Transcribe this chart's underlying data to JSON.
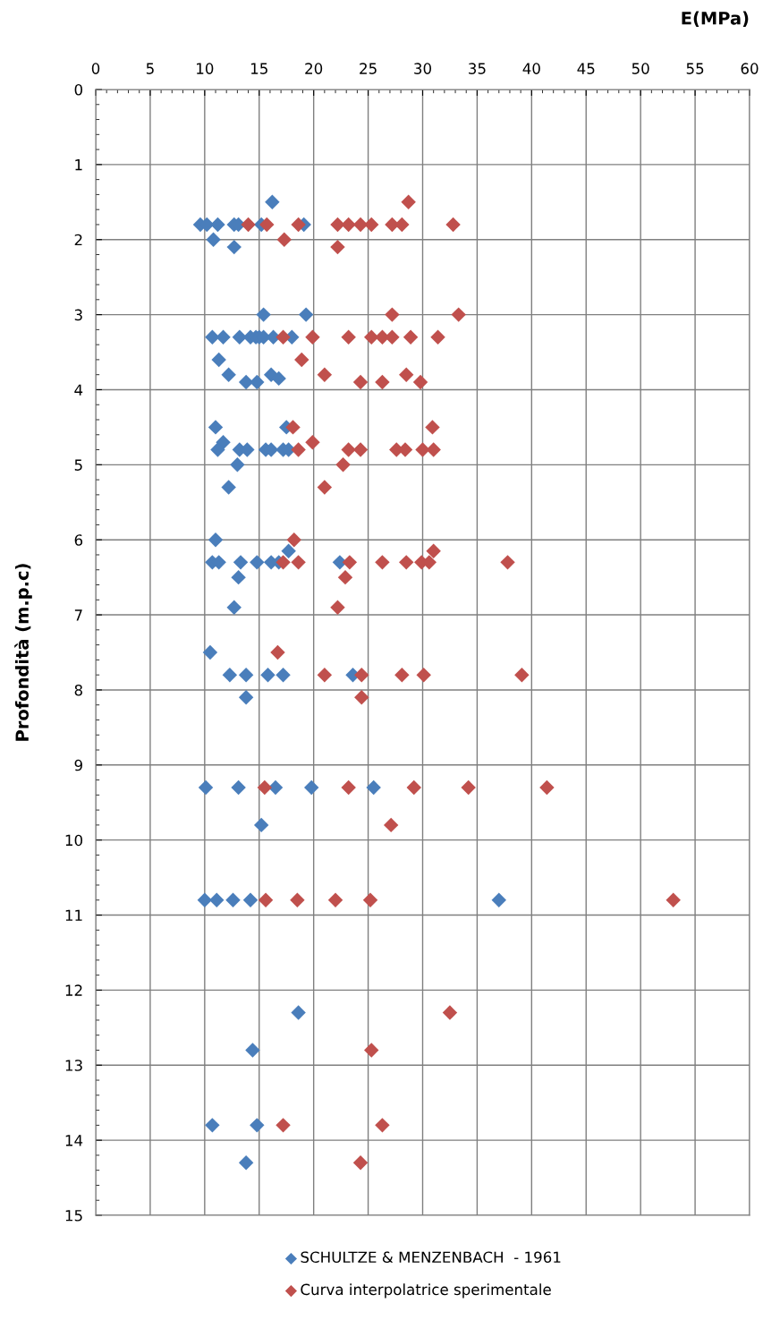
{
  "chart_data": {
    "type": "scatter",
    "xlabel": "E(MPa)",
    "ylabel": "Profondità (m.p.c)",
    "xlim": [
      0,
      60
    ],
    "xticks": [
      0,
      5,
      10,
      15,
      20,
      25,
      30,
      35,
      40,
      45,
      50,
      55,
      60
    ],
    "ylim": [
      15,
      0
    ],
    "yticks": [
      0,
      1,
      2,
      3,
      4,
      5,
      6,
      7,
      8,
      9,
      10,
      11,
      12,
      13,
      14,
      15
    ],
    "grid": true,
    "legend": "bottom",
    "marker": "diamond",
    "series": [
      {
        "name": "SCHULTZE & MENZENBACH  - 1961",
        "color": "#4a7ebb",
        "x": [
          16.2,
          9.6,
          10.2,
          11.2,
          12.7,
          13.1,
          15.2,
          19.1,
          10.8,
          12.7,
          15.4,
          19.3,
          10.7,
          11.7,
          13.2,
          14.2,
          14.7,
          15.0,
          15.4,
          16.3,
          18.0,
          11.3,
          12.2,
          16.1,
          16.8,
          13.8,
          14.8,
          11.0,
          17.5,
          11.7,
          11.2,
          13.2,
          13.9,
          15.6,
          16.1,
          17.2,
          17.7,
          13.0,
          12.2,
          11.0,
          17.7,
          10.7,
          11.3,
          13.3,
          14.8,
          16.1,
          16.8,
          22.4,
          13.1,
          12.7,
          10.5,
          12.3,
          13.8,
          15.8,
          17.2,
          23.6,
          13.8,
          10.1,
          13.1,
          16.5,
          19.8,
          25.5,
          15.2,
          10.0,
          11.1,
          12.6,
          14.2,
          37.0,
          18.6,
          14.4,
          10.7,
          14.8,
          13.8
        ],
        "values": [
          1.5,
          1.8,
          1.8,
          1.8,
          1.8,
          1.8,
          1.8,
          1.8,
          2.0,
          2.1,
          3.0,
          3.0,
          3.3,
          3.3,
          3.3,
          3.3,
          3.3,
          3.3,
          3.3,
          3.3,
          3.3,
          3.6,
          3.8,
          3.8,
          3.85,
          3.9,
          3.9,
          4.5,
          4.5,
          4.7,
          4.8,
          4.8,
          4.8,
          4.8,
          4.8,
          4.8,
          4.8,
          5.0,
          5.3,
          6.0,
          6.15,
          6.3,
          6.3,
          6.3,
          6.3,
          6.3,
          6.3,
          6.3,
          6.5,
          6.9,
          7.5,
          7.8,
          7.8,
          7.8,
          7.8,
          7.8,
          8.1,
          9.3,
          9.3,
          9.3,
          9.3,
          9.3,
          9.8,
          10.8,
          10.8,
          10.8,
          10.8,
          10.8,
          12.3,
          12.8,
          13.8,
          13.8,
          14.3
        ]
      },
      {
        "name": "Curva interpolatrice sperimentale",
        "color": "#c0504d",
        "x": [
          28.7,
          14.0,
          15.7,
          18.6,
          22.2,
          23.2,
          24.3,
          25.3,
          27.2,
          28.1,
          32.8,
          17.3,
          22.2,
          27.2,
          33.3,
          17.2,
          19.9,
          23.2,
          25.3,
          26.3,
          27.2,
          28.9,
          31.4,
          18.9,
          21.0,
          28.5,
          24.3,
          26.3,
          29.8,
          18.1,
          30.9,
          19.9,
          18.6,
          23.2,
          24.3,
          27.6,
          28.4,
          30.0,
          31.0,
          22.7,
          21.0,
          18.2,
          31.0,
          17.2,
          18.6,
          23.3,
          26.3,
          28.5,
          29.9,
          30.6,
          37.8,
          22.9,
          22.2,
          16.7,
          21.0,
          24.4,
          28.1,
          30.1,
          39.1,
          24.4,
          15.5,
          23.2,
          29.2,
          34.2,
          41.4,
          27.1,
          15.6,
          18.5,
          22.0,
          25.2,
          53.0,
          32.5,
          25.3,
          17.2,
          26.3,
          24.3
        ],
        "values": [
          1.5,
          1.8,
          1.8,
          1.8,
          1.8,
          1.8,
          1.8,
          1.8,
          1.8,
          1.8,
          1.8,
          2.0,
          2.1,
          3.0,
          3.0,
          3.3,
          3.3,
          3.3,
          3.3,
          3.3,
          3.3,
          3.3,
          3.3,
          3.6,
          3.8,
          3.8,
          3.9,
          3.9,
          3.9,
          4.5,
          4.5,
          4.7,
          4.8,
          4.8,
          4.8,
          4.8,
          4.8,
          4.8,
          4.8,
          5.0,
          5.3,
          6.0,
          6.15,
          6.3,
          6.3,
          6.3,
          6.3,
          6.3,
          6.3,
          6.3,
          6.3,
          6.5,
          6.9,
          7.5,
          7.8,
          7.8,
          7.8,
          7.8,
          7.8,
          8.1,
          9.3,
          9.3,
          9.3,
          9.3,
          9.3,
          9.8,
          10.8,
          10.8,
          10.8,
          10.8,
          10.8,
          12.3,
          12.8,
          13.8,
          13.8,
          14.3
        ]
      }
    ]
  }
}
